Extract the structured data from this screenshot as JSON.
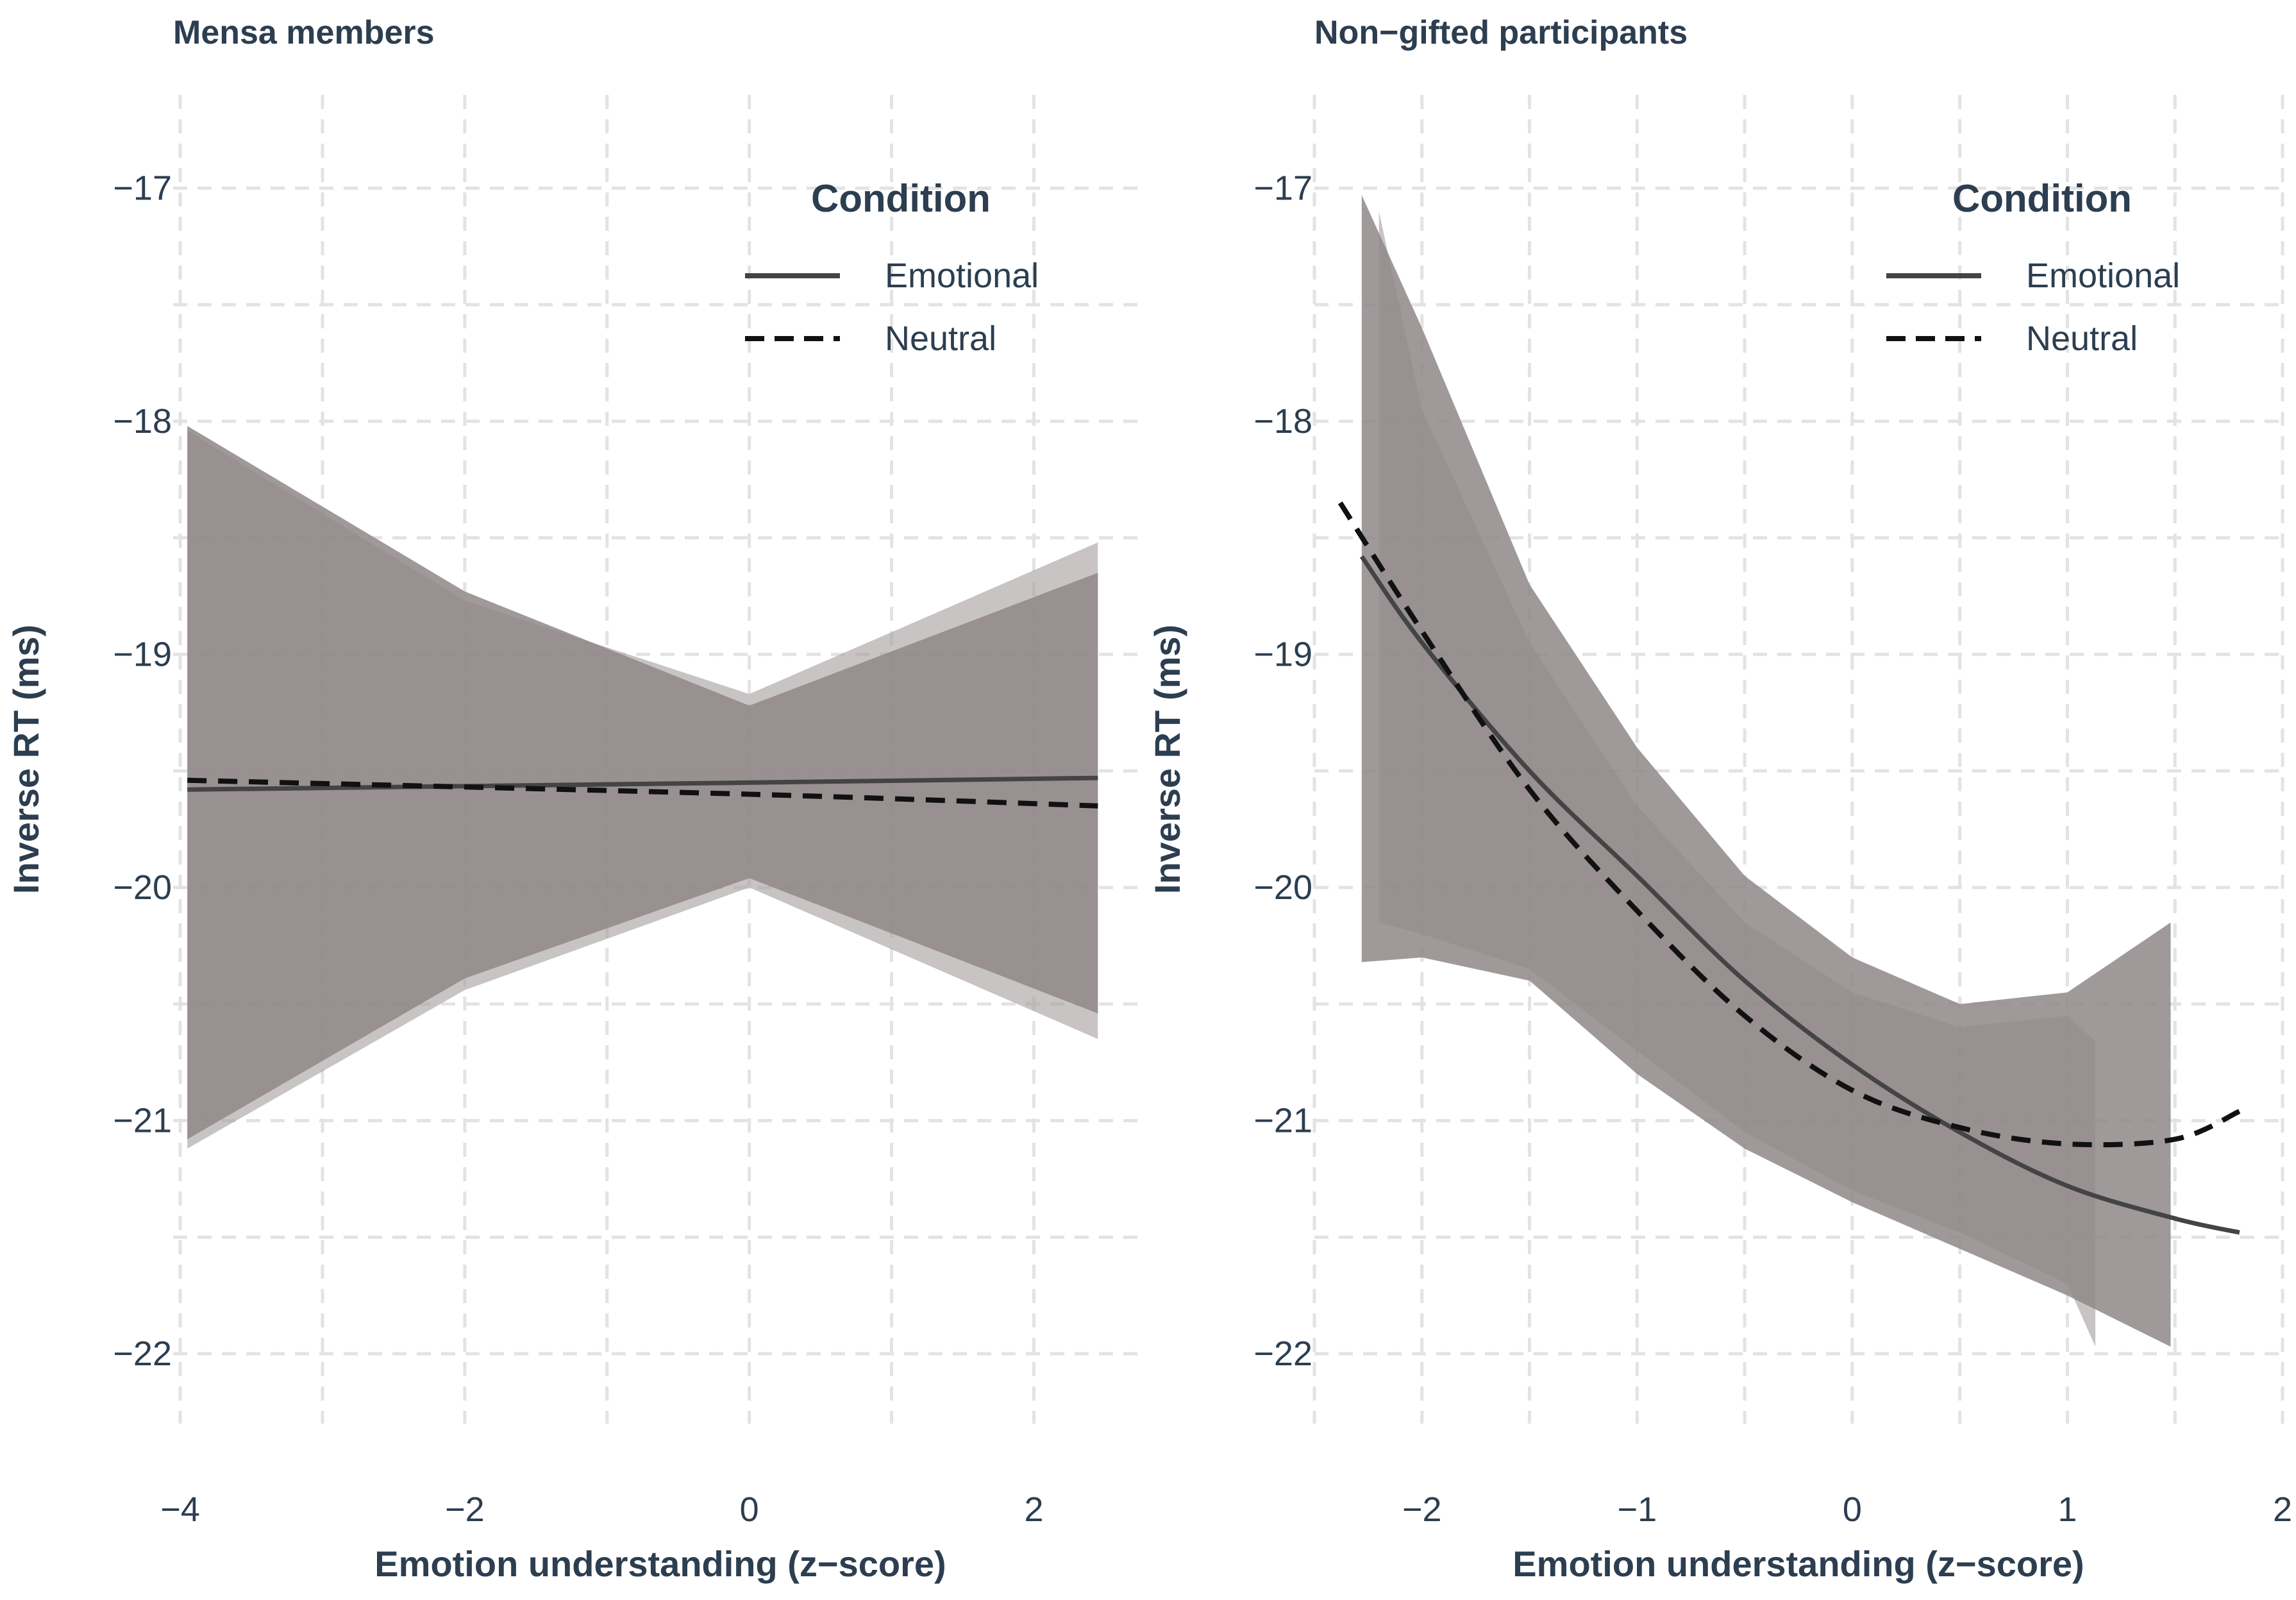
{
  "colors": {
    "text": "#2c3e50",
    "grid": "#e3e3e3",
    "ribbon_emotional": "#8f8788",
    "ribbon_neutral": "#a69fa0",
    "line_emotional": "#444444",
    "line_neutral": "#111111"
  },
  "chart_data": [
    {
      "type": "line",
      "panel_title": "Mensa members",
      "xlabel": "Emotion understanding (z−score)",
      "ylabel": "Inverse RT (ms)",
      "xlim": [
        -4.05,
        2.8
      ],
      "ylim": [
        -22.3,
        -16.6
      ],
      "x_ticks": [
        -4,
        -2,
        0,
        2
      ],
      "x_tick_labels": [
        "−4",
        "−2",
        "0",
        "2"
      ],
      "y_ticks": [
        -17,
        -18,
        -19,
        -20,
        -21,
        -22
      ],
      "y_tick_labels": [
        "−17",
        "−18",
        "−19",
        "−20",
        "−21",
        "−22"
      ],
      "legend": {
        "title": "Condition",
        "position": "top-right",
        "entries": [
          {
            "label": "Emotional",
            "style": "solid"
          },
          {
            "label": "Neutral",
            "style": "dashed"
          }
        ]
      },
      "series": [
        {
          "name": "Emotional",
          "style": "solid",
          "x": [
            -3.95,
            0,
            2.45
          ],
          "fit": {
            "x": [
              -3.95,
              0,
              2.45
            ],
            "y": [
              -19.58,
              -19.55,
              -19.53
            ]
          },
          "ci_upper": {
            "x": [
              -3.95,
              -2,
              0,
              2.45
            ],
            "y": [
              -18.02,
              -18.73,
              -19.22,
              -18.65
            ]
          },
          "ci_lower": {
            "x": [
              -3.95,
              -2,
              0,
              2.45
            ],
            "y": [
              -21.08,
              -20.39,
              -19.96,
              -20.54
            ]
          }
        },
        {
          "name": "Neutral",
          "style": "dashed",
          "x": [
            -3.95,
            0,
            2.45
          ],
          "fit": {
            "x": [
              -3.95,
              0,
              2.45
            ],
            "y": [
              -19.54,
              -19.6,
              -19.65
            ]
          },
          "ci_upper": {
            "x": [
              -3.95,
              -2,
              0,
              2.45
            ],
            "y": [
              -18.04,
              -18.77,
              -19.17,
              -18.52
            ]
          },
          "ci_lower": {
            "x": [
              -3.95,
              -2,
              0,
              2.45
            ],
            "y": [
              -21.12,
              -20.44,
              -20.0,
              -20.65
            ]
          }
        }
      ]
    },
    {
      "type": "line",
      "panel_title": "Non−gifted participants",
      "xlabel": "Emotion understanding (z−score)",
      "ylabel": "Inverse RT (ms)",
      "xlim": [
        -2.5,
        2.0
      ],
      "ylim": [
        -22.3,
        -16.6
      ],
      "x_ticks": [
        -2,
        -1,
        0,
        1,
        2
      ],
      "x_tick_labels": [
        "−2",
        "−1",
        "0",
        "1",
        "2"
      ],
      "y_ticks": [
        -17,
        -18,
        -19,
        -20,
        -21,
        -22
      ],
      "y_tick_labels": [
        "−17",
        "−18",
        "−19",
        "−20",
        "−21",
        "−22"
      ],
      "legend": {
        "title": "Condition",
        "position": "top-right",
        "entries": [
          {
            "label": "Emotional",
            "style": "solid"
          },
          {
            "label": "Neutral",
            "style": "dashed"
          }
        ]
      },
      "series": [
        {
          "name": "Emotional",
          "style": "solid",
          "fit": {
            "x": [
              -2.28,
              -2.0,
              -1.5,
              -1.0,
              -0.5,
              0.0,
              0.5,
              1.0,
              1.5,
              1.8
            ],
            "y": [
              -18.58,
              -18.95,
              -19.5,
              -19.95,
              -20.4,
              -20.76,
              -21.05,
              -21.28,
              -21.42,
              -21.48
            ]
          },
          "ci_upper": {
            "x": [
              -2.28,
              -2.0,
              -1.5,
              -1.0,
              -0.5,
              0.0,
              0.5,
              1.0,
              1.48
            ],
            "y": [
              -17.03,
              -17.6,
              -18.7,
              -19.4,
              -19.95,
              -20.3,
              -20.5,
              -20.45,
              -20.15
            ]
          },
          "ci_lower": {
            "x": [
              -2.28,
              -2.0,
              -1.5,
              -1.0,
              -0.5,
              0.0,
              0.5,
              1.0,
              1.48
            ],
            "y": [
              -20.32,
              -20.3,
              -20.4,
              -20.8,
              -21.12,
              -21.35,
              -21.55,
              -21.75,
              -21.97
            ]
          }
        },
        {
          "name": "Neutral",
          "style": "dashed",
          "fit": {
            "x": [
              -2.38,
              -2.0,
              -1.5,
              -1.0,
              -0.5,
              0.0,
              0.5,
              1.0,
              1.5,
              1.8
            ],
            "y": [
              -18.35,
              -18.9,
              -19.58,
              -20.1,
              -20.55,
              -20.87,
              -21.03,
              -21.1,
              -21.08,
              -20.96
            ]
          },
          "ci_upper": {
            "x": [
              -2.2,
              -2.0,
              -1.5,
              -1.0,
              -0.5,
              0.0,
              0.5,
              1.0,
              1.13
            ],
            "y": [
              -17.1,
              -17.95,
              -18.95,
              -19.65,
              -20.15,
              -20.45,
              -20.6,
              -20.55,
              -20.66
            ]
          },
          "ci_lower": {
            "x": [
              -2.2,
              -2.0,
              -1.5,
              -1.0,
              -0.5,
              0.0,
              0.5,
              1.0,
              1.13
            ],
            "y": [
              -20.15,
              -20.2,
              -20.35,
              -20.7,
              -21.05,
              -21.3,
              -21.48,
              -21.7,
              -21.97
            ]
          }
        }
      ]
    }
  ]
}
